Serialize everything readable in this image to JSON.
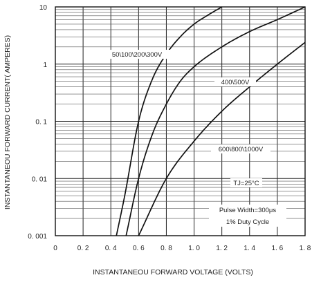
{
  "chart_data": {
    "type": "line",
    "xlabel": "INSTANTANEOU FORWARD VOLTAGE (VOLTS)",
    "ylabel": "INSTANTANEOU FORWARD CURRENT( AMPERES)",
    "xlim": [
      0,
      1.8
    ],
    "ylim": [
      0.001,
      10
    ],
    "yscale": "log",
    "grid": true,
    "x_ticks": [
      {
        "value": 0,
        "label": "0"
      },
      {
        "value": 0.2,
        "label": "0. 2"
      },
      {
        "value": 0.4,
        "label": "0. 4"
      },
      {
        "value": 0.6,
        "label": "0. 6"
      },
      {
        "value": 0.8,
        "label": "0. 8"
      },
      {
        "value": 1.0,
        "label": "1. 0"
      },
      {
        "value": 1.2,
        "label": "1. 2"
      },
      {
        "value": 1.4,
        "label": "1. 4"
      },
      {
        "value": 1.6,
        "label": "1. 6"
      },
      {
        "value": 1.8,
        "label": "1. 8"
      }
    ],
    "y_ticks": [
      {
        "value": 10,
        "label": "10"
      },
      {
        "value": 1,
        "label": "1"
      },
      {
        "value": 0.1,
        "label": "0. 1"
      },
      {
        "value": 0.01,
        "label": "0. 01"
      },
      {
        "value": 0.001,
        "label": "0. 001"
      }
    ],
    "series": [
      {
        "name": "50\\100\\200\\300V",
        "x": [
          0.44,
          0.5,
          0.6,
          0.7,
          0.8,
          0.9,
          1.0,
          1.1,
          1.2
        ],
        "y": [
          0.001,
          0.005,
          0.1,
          0.55,
          1.5,
          3.0,
          5.0,
          7.2,
          10
        ]
      },
      {
        "name": "400\\500V",
        "x": [
          0.51,
          0.6,
          0.7,
          0.8,
          0.9,
          1.0,
          1.2,
          1.4,
          1.6,
          1.8
        ],
        "y": [
          0.001,
          0.01,
          0.06,
          0.2,
          0.5,
          0.9,
          2.0,
          3.7,
          6.0,
          10
        ]
      },
      {
        "name": "600\\800\\1000V",
        "x": [
          0.6,
          0.8,
          1.0,
          1.2,
          1.4,
          1.6,
          1.8
        ],
        "y": [
          0.001,
          0.01,
          0.045,
          0.15,
          0.4,
          1.0,
          2.4
        ]
      }
    ],
    "annotations": [
      {
        "text": "50\\100\\200\\300V",
        "series": 0
      },
      {
        "text": "400\\500V",
        "series": 1
      },
      {
        "text": "600\\800\\1000V",
        "series": 2
      },
      {
        "text": "TJ=25°C"
      },
      {
        "text": "Pulse Width=300μs"
      },
      {
        "text": "1% Duty Cycle"
      }
    ]
  }
}
